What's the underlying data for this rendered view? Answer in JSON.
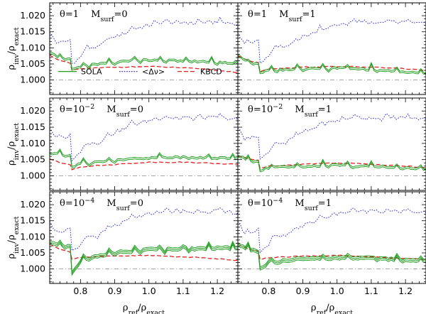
{
  "chart_data": {
    "type": "line",
    "layout": "3 rows x 2 columns",
    "xlabel": "ρ_ref/ρ_exact",
    "ylabel": "ρ_inv/ρ_exact",
    "xlim": [
      0.71,
      1.26
    ],
    "ylim": [
      0.9955,
      1.024
    ],
    "xticks": [
      0.8,
      0.9,
      1.0,
      1.1,
      1.2
    ],
    "xtick_labels": [
      "0.8",
      "0.9",
      "1.0",
      "1.1",
      "1.2"
    ],
    "yticks": [
      1.0,
      1.005,
      1.01,
      1.015,
      1.02
    ],
    "ytick_labels": [
      "1.000",
      "1.005",
      "1.010",
      "1.015",
      "1.020"
    ],
    "reference_line": 1.0,
    "legend": [
      {
        "name": "SOLA",
        "color": "#1f9e1f",
        "style": "solid"
      },
      {
        "name": "<Δν>",
        "color": "#2d2dd6",
        "style": "dotted"
      },
      {
        "name": "KBCD",
        "color": "#e02020",
        "style": "dashed"
      }
    ],
    "panels": [
      {
        "theta_label": "θ=1",
        "msurf": "0",
        "SOLA": [
          [
            0.71,
            1.0087
          ],
          [
            0.74,
            1.0072
          ],
          [
            0.77,
            1.0068
          ],
          [
            0.775,
            1.0035
          ],
          [
            0.8,
            1.0045
          ],
          [
            0.85,
            1.0052
          ],
          [
            0.9,
            1.0058
          ],
          [
            0.95,
            1.0063
          ],
          [
            1.0,
            1.0065
          ],
          [
            1.05,
            1.0063
          ],
          [
            1.1,
            1.0062
          ],
          [
            1.15,
            1.006
          ],
          [
            1.2,
            1.0057
          ],
          [
            1.26,
            1.0054
          ]
        ],
        "KBCD": [
          [
            0.71,
            1.0078
          ],
          [
            0.74,
            1.006
          ],
          [
            0.77,
            1.0052
          ],
          [
            0.775,
            1.003
          ],
          [
            0.8,
            1.0035
          ],
          [
            0.9,
            1.004
          ],
          [
            1.0,
            1.0042
          ],
          [
            1.1,
            1.0038
          ],
          [
            1.2,
            1.003
          ],
          [
            1.26,
            1.0024
          ]
        ]
      },
      {
        "theta_label": "θ=1",
        "msurf": "1",
        "SOLA": [
          [
            0.71,
            1.0077
          ],
          [
            0.74,
            1.006
          ],
          [
            0.77,
            1.0055
          ],
          [
            0.775,
            1.0025
          ],
          [
            0.8,
            1.0033
          ],
          [
            0.9,
            1.0037
          ],
          [
            1.0,
            1.004
          ],
          [
            1.1,
            1.0035
          ],
          [
            1.2,
            1.0028
          ],
          [
            1.26,
            1.0022
          ]
        ],
        "KBCD": [
          [
            0.71,
            1.0076
          ],
          [
            0.74,
            1.006
          ],
          [
            0.77,
            1.0055
          ],
          [
            0.775,
            1.0027
          ],
          [
            0.8,
            1.0035
          ],
          [
            0.9,
            1.004
          ],
          [
            1.0,
            1.0042
          ],
          [
            1.1,
            1.004
          ],
          [
            1.2,
            1.0035
          ],
          [
            1.26,
            1.003
          ]
        ]
      },
      {
        "theta_label": "θ=10⁻²",
        "msurf": "0",
        "SOLA": [
          [
            0.71,
            1.0072
          ],
          [
            0.74,
            1.0068
          ],
          [
            0.77,
            1.0065
          ],
          [
            0.775,
            1.003
          ],
          [
            0.8,
            1.004
          ],
          [
            0.9,
            1.005
          ],
          [
            1.0,
            1.0058
          ],
          [
            1.1,
            1.006
          ],
          [
            1.2,
            1.0057
          ],
          [
            1.26,
            1.0055
          ]
        ],
        "KBCD": [
          [
            0.71,
            1.0052
          ],
          [
            0.74,
            1.004
          ],
          [
            0.77,
            1.0035
          ],
          [
            0.775,
            1.002
          ],
          [
            0.8,
            1.0028
          ],
          [
            0.9,
            1.0035
          ],
          [
            1.0,
            1.0042
          ],
          [
            1.1,
            1.0042
          ],
          [
            1.2,
            1.0038
          ],
          [
            1.26,
            1.0035
          ]
        ]
      },
      {
        "theta_label": "θ=10⁻²",
        "msurf": "1",
        "SOLA": [
          [
            0.71,
            1.0063
          ],
          [
            0.74,
            1.0053
          ],
          [
            0.77,
            1.0048
          ],
          [
            0.775,
            1.002
          ],
          [
            0.8,
            1.0027
          ],
          [
            0.9,
            1.0032
          ],
          [
            1.0,
            1.0035
          ],
          [
            1.1,
            1.0032
          ],
          [
            1.2,
            1.0027
          ],
          [
            1.26,
            1.0024
          ]
        ],
        "KBCD": [
          [
            0.71,
            1.0062
          ],
          [
            0.74,
            1.0052
          ],
          [
            0.77,
            1.0048
          ],
          [
            0.775,
            1.0023
          ],
          [
            0.8,
            1.003
          ],
          [
            0.9,
            1.0036
          ],
          [
            1.0,
            1.004
          ],
          [
            1.1,
            1.0036
          ],
          [
            1.2,
            1.003
          ],
          [
            1.26,
            1.0025
          ]
        ]
      },
      {
        "theta_label": "θ=10⁻⁴",
        "msurf": "0",
        "SOLA": [
          [
            0.71,
            1.0082
          ],
          [
            0.74,
            1.0075
          ],
          [
            0.77,
            1.0072
          ],
          [
            0.775,
            0.9985
          ],
          [
            0.8,
            1.0025
          ],
          [
            0.85,
            1.004
          ],
          [
            0.9,
            1.0052
          ],
          [
            1.0,
            1.006
          ],
          [
            1.1,
            1.0063
          ],
          [
            1.2,
            1.0064
          ],
          [
            1.26,
            1.0065
          ]
        ],
        "KBCD": [
          [
            0.71,
            1.0078
          ],
          [
            0.74,
            1.0062
          ],
          [
            0.77,
            1.0052
          ],
          [
            0.775,
            1.0032
          ],
          [
            0.8,
            1.0036
          ],
          [
            0.9,
            1.004
          ],
          [
            1.0,
            1.0042
          ],
          [
            1.1,
            1.0038
          ],
          [
            1.2,
            1.0032
          ],
          [
            1.26,
            1.0027
          ]
        ]
      },
      {
        "theta_label": "θ=10⁻⁴",
        "msurf": "1",
        "SOLA": [
          [
            0.71,
            1.0077
          ],
          [
            0.74,
            1.0062
          ],
          [
            0.77,
            1.0055
          ],
          [
            0.775,
            1.0
          ],
          [
            0.8,
            1.002
          ],
          [
            0.9,
            1.003
          ],
          [
            1.0,
            1.0035
          ],
          [
            1.1,
            1.0033
          ],
          [
            1.2,
            1.0028
          ],
          [
            1.26,
            1.0025
          ]
        ],
        "KBCD": [
          [
            0.71,
            1.0077
          ],
          [
            0.74,
            1.0062
          ],
          [
            0.77,
            1.0055
          ],
          [
            0.775,
            1.003
          ],
          [
            0.8,
            1.0035
          ],
          [
            0.9,
            1.004
          ],
          [
            1.0,
            1.0042
          ],
          [
            1.1,
            1.0038
          ],
          [
            1.2,
            1.0033
          ],
          [
            1.26,
            1.003
          ]
        ]
      }
    ],
    "dnu_series": [
      [
        0.71,
        1.0148
      ],
      [
        0.73,
        1.0115
      ],
      [
        0.76,
        1.012
      ],
      [
        0.77,
        1.0125
      ],
      [
        0.775,
        1.0052
      ],
      [
        0.8,
        1.007
      ],
      [
        0.82,
        1.0105
      ],
      [
        0.85,
        1.01
      ],
      [
        0.88,
        1.0125
      ],
      [
        0.9,
        1.0135
      ],
      [
        0.93,
        1.0145
      ],
      [
        0.95,
        1.016
      ],
      [
        0.98,
        1.0165
      ],
      [
        1.0,
        1.017
      ],
      [
        1.03,
        1.0178
      ],
      [
        1.05,
        1.0185
      ],
      [
        1.08,
        1.0175
      ],
      [
        1.1,
        1.0182
      ],
      [
        1.13,
        1.0175
      ],
      [
        1.15,
        1.0183
      ],
      [
        1.18,
        1.0178
      ],
      [
        1.2,
        1.0182
      ],
      [
        1.23,
        1.0178
      ],
      [
        1.26,
        1.0174
      ]
    ]
  },
  "legend_labels": {
    "sola": "SOLA",
    "dnu": "<Δν>",
    "kbcd": "KBCD"
  },
  "msurf_label": "M",
  "msurf_sub": "surf",
  "ylabel_main": "ρ",
  "ylabel_sub1": "inv",
  "ylabel_slash": "/ρ",
  "ylabel_sub2": "exact",
  "xlabel_main": "ρ",
  "xlabel_sub1": "ref",
  "xlabel_slash": "/ρ",
  "xlabel_sub2": "exact"
}
